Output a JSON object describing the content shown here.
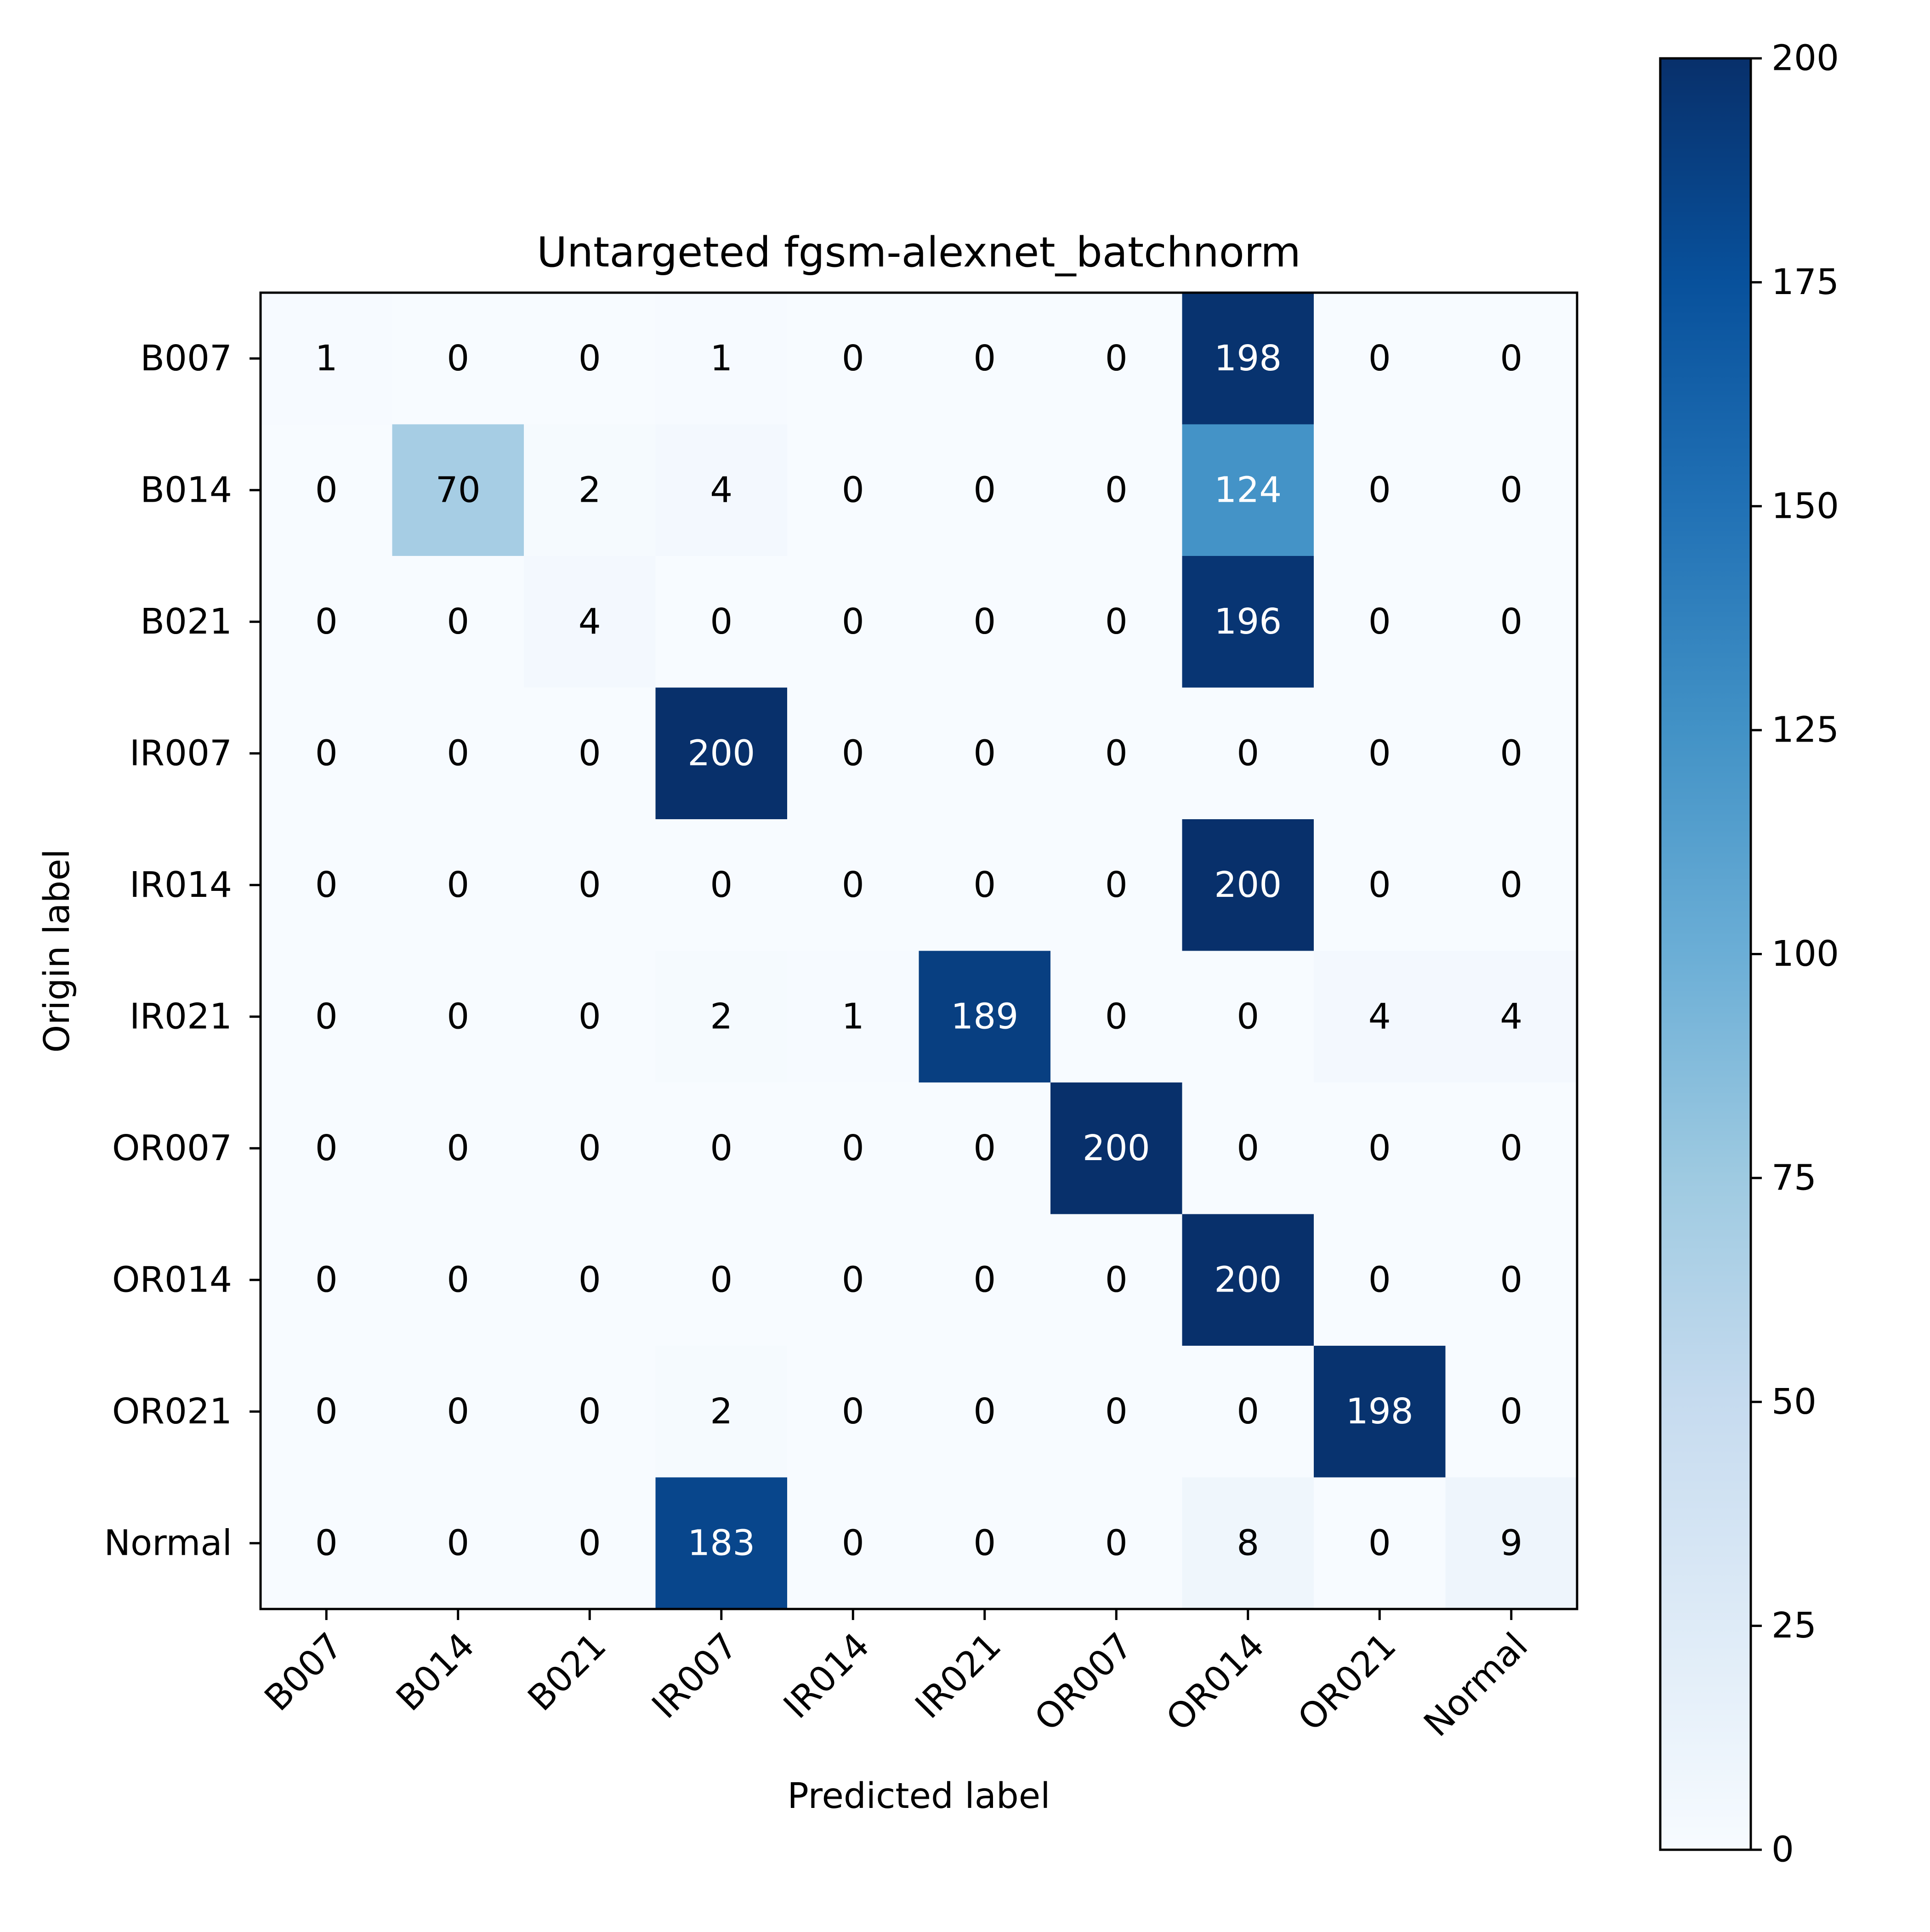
{
  "chart_data": {
    "type": "heatmap",
    "title": "Untargeted fgsm-alexnet_batchnorm",
    "xlabel": "Predicted label",
    "ylabel": "Origin label",
    "x_categories": [
      "B007",
      "B014",
      "B021",
      "IR007",
      "IR014",
      "IR021",
      "OR007",
      "OR014",
      "OR021",
      "Normal"
    ],
    "y_categories": [
      "B007",
      "B014",
      "B021",
      "IR007",
      "IR014",
      "IR021",
      "OR007",
      "OR014",
      "OR021",
      "Normal"
    ],
    "matrix": [
      [
        1,
        0,
        0,
        1,
        0,
        0,
        0,
        198,
        0,
        0
      ],
      [
        0,
        70,
        2,
        4,
        0,
        0,
        0,
        124,
        0,
        0
      ],
      [
        0,
        0,
        4,
        0,
        0,
        0,
        0,
        196,
        0,
        0
      ],
      [
        0,
        0,
        0,
        200,
        0,
        0,
        0,
        0,
        0,
        0
      ],
      [
        0,
        0,
        0,
        0,
        0,
        0,
        0,
        200,
        0,
        0
      ],
      [
        0,
        0,
        0,
        2,
        1,
        189,
        0,
        0,
        4,
        4
      ],
      [
        0,
        0,
        0,
        0,
        0,
        0,
        200,
        0,
        0,
        0
      ],
      [
        0,
        0,
        0,
        0,
        0,
        0,
        0,
        200,
        0,
        0
      ],
      [
        0,
        0,
        0,
        2,
        0,
        0,
        0,
        0,
        198,
        0
      ],
      [
        0,
        0,
        0,
        183,
        0,
        0,
        0,
        8,
        0,
        9
      ]
    ],
    "colorbar": {
      "colormap": "Blues",
      "range": [
        0,
        200
      ],
      "ticks": [
        0,
        25,
        50,
        75,
        100,
        125,
        150,
        175,
        200
      ]
    },
    "text_colors": {
      "light": "#ffffff",
      "dark": "#000000"
    },
    "x_tick_rotation": "45deg"
  }
}
